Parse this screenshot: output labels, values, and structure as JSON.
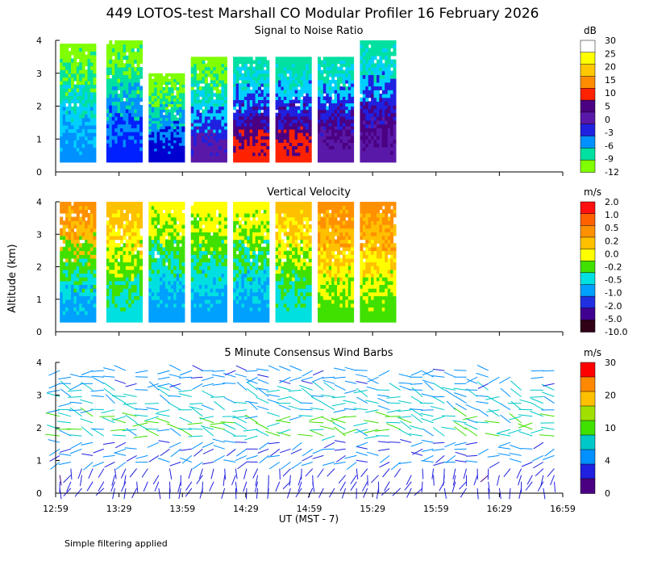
{
  "chart_data": {
    "type": "heatmap",
    "title": "449 LOTOS-test Marshall CO Modular Profiler 16 February 2026",
    "ylabel": "Altitude (km)",
    "xlabel": "UT  (MST - 7)",
    "footnote": "Simple filtering applied",
    "x_ticks": [
      "12:59",
      "13:29",
      "13:59",
      "14:29",
      "14:59",
      "15:29",
      "15:59",
      "16:29",
      "16:59"
    ],
    "xlim_minutes": [
      0,
      240
    ],
    "y_ticks": [
      "0",
      "1",
      "2",
      "3",
      "4"
    ],
    "ylim_km": [
      0,
      4
    ],
    "panels": [
      {
        "id": "snr",
        "title": "Signal to Noise Ratio",
        "type": "heatmap",
        "units": "dB",
        "colorbar": {
          "labels": [
            "30",
            "25",
            "20",
            "15",
            "10",
            "5",
            "0",
            "-3",
            "-6",
            "-9",
            "-12"
          ],
          "colors": [
            "#ffffff",
            "#ffff00",
            "#ffc800",
            "#ff8c00",
            "#ff2200",
            "#4b0082",
            "#5a18a8",
            "#2020e0",
            "#0090ff",
            "#00e0a0",
            "#80ff00"
          ]
        },
        "blocks": [
          {
            "t0": 2,
            "t1": 19,
            "low": 0.3,
            "high": 3.9,
            "levels": [
              "#0090ff",
              "#00d0ff",
              "#00e0a0",
              "#80ff00"
            ]
          },
          {
            "t0": 24,
            "t1": 41,
            "low": 0.3,
            "high": 4.0,
            "levels": [
              "#0020ff",
              "#0090ff",
              "#00e0a0",
              "#80ff00"
            ]
          },
          {
            "t0": 44,
            "t1": 61,
            "low": 0.3,
            "high": 3.0,
            "levels": [
              "#0000d0",
              "#0090ff",
              "#00e0a0",
              "#80ff00"
            ]
          },
          {
            "t0": 64,
            "t1": 81,
            "low": 0.3,
            "high": 3.5,
            "levels": [
              "#5a18a8",
              "#2020e0",
              "#00d0ff",
              "#00e0a0",
              "#80ff00"
            ]
          },
          {
            "t0": 84,
            "t1": 101,
            "low": 0.3,
            "high": 3.5,
            "levels": [
              "#ff2200",
              "#4b0082",
              "#2020e0",
              "#00d0ff",
              "#00e0a0"
            ]
          },
          {
            "t0": 104,
            "t1": 121,
            "low": 0.3,
            "high": 3.5,
            "levels": [
              "#ff2200",
              "#4b0082",
              "#2020e0",
              "#00d0ff",
              "#00e0a0"
            ]
          },
          {
            "t0": 124,
            "t1": 141,
            "low": 0.3,
            "high": 3.5,
            "levels": [
              "#5a18a8",
              "#4b0082",
              "#2020e0",
              "#00d0ff",
              "#00e0a0"
            ]
          },
          {
            "t0": 144,
            "t1": 161,
            "low": 0.3,
            "high": 4.0,
            "levels": [
              "#5a18a8",
              "#4b0082",
              "#2020e0",
              "#00d0ff",
              "#00e0a0"
            ]
          }
        ]
      },
      {
        "id": "vv",
        "title": "Vertical Velocity",
        "type": "heatmap",
        "units": "m/s",
        "colorbar": {
          "labels": [
            "2.0",
            "1.0",
            "0.5",
            "0.2",
            "0.0",
            "-0.2",
            "-0.5",
            "-1.0",
            "-2.0",
            "-5.0",
            "-10.0"
          ],
          "colors": [
            "#ff1010",
            "#ff6000",
            "#ff9000",
            "#ffc000",
            "#ffff00",
            "#40e000",
            "#00e0e0",
            "#00a0ff",
            "#2030e0",
            "#400090",
            "#300018"
          ]
        },
        "blocks": [
          {
            "t0": 2,
            "t1": 19,
            "low": 0.3,
            "high": 4.0,
            "levels": [
              "#00a0ff",
              "#00e0e0",
              "#40e000",
              "#ffc000",
              "#ff9000"
            ]
          },
          {
            "t0": 24,
            "t1": 41,
            "low": 0.3,
            "high": 4.0,
            "levels": [
              "#00e0e0",
              "#40e000",
              "#ffff00",
              "#ffc000"
            ]
          },
          {
            "t0": 44,
            "t1": 61,
            "low": 0.3,
            "high": 4.0,
            "levels": [
              "#00a0ff",
              "#00e0e0",
              "#40e000",
              "#ffff00"
            ]
          },
          {
            "t0": 64,
            "t1": 81,
            "low": 0.3,
            "high": 4.0,
            "levels": [
              "#00a0ff",
              "#00e0e0",
              "#40e000",
              "#ffff00"
            ]
          },
          {
            "t0": 84,
            "t1": 101,
            "low": 0.3,
            "high": 4.0,
            "levels": [
              "#00a0ff",
              "#00e0e0",
              "#40e000",
              "#ffff00"
            ]
          },
          {
            "t0": 104,
            "t1": 121,
            "low": 0.3,
            "high": 4.0,
            "levels": [
              "#00e0e0",
              "#40e000",
              "#ffff00",
              "#ffc000"
            ]
          },
          {
            "t0": 124,
            "t1": 141,
            "low": 0.3,
            "high": 4.0,
            "levels": [
              "#40e000",
              "#ffff00",
              "#ffc000",
              "#ff9000"
            ]
          },
          {
            "t0": 144,
            "t1": 161,
            "low": 0.3,
            "high": 4.0,
            "levels": [
              "#40e000",
              "#ffff00",
              "#ffc000",
              "#ff9000"
            ]
          }
        ]
      },
      {
        "id": "wind",
        "title": "5 Minute Consensus Wind Barbs",
        "type": "wind_barbs",
        "units": "m/s",
        "colorbar": {
          "labels": [
            "30",
            "20",
            "10",
            "4",
            "0"
          ],
          "colors": [
            "#ff0000",
            "#ff8800",
            "#ffc000",
            "#a0e000",
            "#40e000",
            "#00c8c8",
            "#0090ff",
            "#2020e0",
            "#4b0082"
          ]
        },
        "layers": [
          {
            "low": 0.0,
            "high": 0.8,
            "speed_ms": 3,
            "dir_deg": 200
          },
          {
            "low": 0.8,
            "high": 1.6,
            "speed_ms": 7,
            "dir_deg": 260
          },
          {
            "low": 1.6,
            "high": 2.5,
            "speed_ms": 14,
            "dir_deg": 280
          },
          {
            "low": 2.5,
            "high": 3.3,
            "speed_ms": 11,
            "dir_deg": 285
          },
          {
            "low": 3.3,
            "high": 4.0,
            "speed_ms": 8,
            "dir_deg": 270
          }
        ]
      }
    ]
  }
}
